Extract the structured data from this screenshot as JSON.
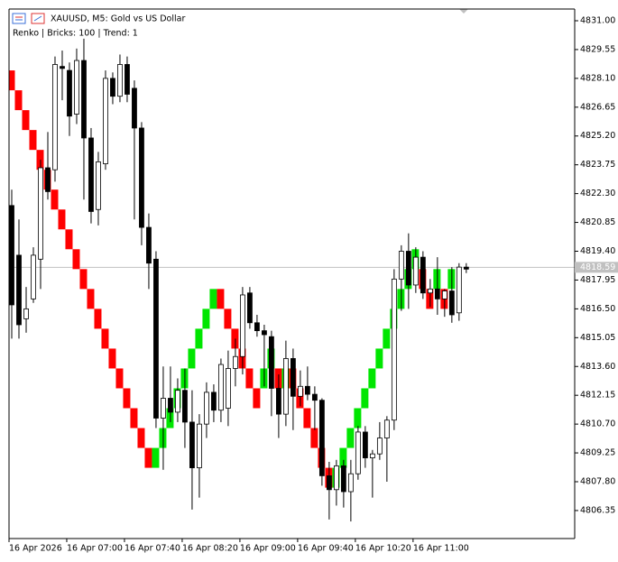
{
  "chart_data": {
    "type": "candlestick",
    "title": "XAUUSD, M5:  Gold vs US Dollar",
    "subtitle": "Renko | Bricks: 100 | Trend: 1",
    "ylim": [
      4804.94,
      4831.59
    ],
    "xlim": [
      0,
      78.4
    ],
    "yticks": [
      {
        "value": 4831.0,
        "label": "4831.00"
      },
      {
        "value": 4829.55,
        "label": "4829.55"
      },
      {
        "value": 4828.1,
        "label": "4828.10"
      },
      {
        "value": 4826.65,
        "label": "4826.65"
      },
      {
        "value": 4825.2,
        "label": "4825.20"
      },
      {
        "value": 4823.75,
        "label": "4823.75"
      },
      {
        "value": 4822.3,
        "label": "4822.30"
      },
      {
        "value": 4820.85,
        "label": "4820.85"
      },
      {
        "value": 4819.4,
        "label": "4819.40"
      },
      {
        "value": 4817.95,
        "label": "4817.95"
      },
      {
        "value": 4816.5,
        "label": "4816.50"
      },
      {
        "value": 4815.05,
        "label": "4815.05"
      },
      {
        "value": 4813.6,
        "label": "4813.60"
      },
      {
        "value": 4812.15,
        "label": "4812.15"
      },
      {
        "value": 4810.7,
        "label": "4810.70"
      },
      {
        "value": 4809.25,
        "label": "4809.25"
      },
      {
        "value": 4807.8,
        "label": "4807.80"
      },
      {
        "value": 4806.35,
        "label": "4806.35"
      }
    ],
    "xticks": [
      {
        "value": 0,
        "label": "16 Apr 2026"
      },
      {
        "value": 8,
        "label": "16 Apr 07:00"
      },
      {
        "value": 16,
        "label": "16 Apr 07:40"
      },
      {
        "value": 24,
        "label": "16 Apr 08:20"
      },
      {
        "value": 32,
        "label": "16 Apr 09:00"
      },
      {
        "value": 40,
        "label": "16 Apr 09:40"
      },
      {
        "value": 48,
        "label": "16 Apr 10:20"
      },
      {
        "value": 56,
        "label": "16 Apr 11:00"
      }
    ],
    "current_price": {
      "value": 4818.59,
      "label": "4818.59"
    },
    "candles": {
      "bull_color": "#ffffff",
      "bear_color": "#000000",
      "open": [
        4821.7,
        4819.2,
        4816.0,
        4817.0,
        4819.0,
        4823.6,
        4823.5,
        4828.7,
        4828.5,
        4826.3,
        4829.0,
        4825.1,
        4821.5,
        4823.8,
        4828.1,
        4827.2,
        4828.8,
        4827.6,
        4825.6,
        4820.6,
        4819.0,
        4811.0,
        4812.0,
        4811.3,
        4812.4,
        4810.8,
        4808.5,
        4810.7,
        4812.3,
        4811.4,
        4811.5,
        4813.5,
        4814.1,
        4817.3,
        4815.8,
        4815.4,
        4815.1,
        4812.5,
        4811.2,
        4814.0,
        4812.1,
        4812.6,
        4812.2,
        4811.9,
        4808.1,
        4807.4,
        4808.6,
        4807.3,
        4808.2,
        4810.3,
        4809.0,
        4809.2,
        4810.0,
        4810.9,
        4818.0,
        4819.4,
        4817.7,
        4819.1,
        4817.3,
        4817.5,
        4817.0,
        4817.4,
        4816.3,
        4818.6
      ],
      "high": [
        4822.5,
        4821.0,
        4817.6,
        4819.6,
        4824.0,
        4825.4,
        4829.2,
        4829.5,
        4828.9,
        4829.6,
        4830.1,
        4825.6,
        4824.4,
        4828.5,
        4828.4,
        4829.3,
        4829.2,
        4828.0,
        4825.9,
        4821.3,
        4819.4,
        4813.6,
        4813.6,
        4813.0,
        4813.5,
        4812.4,
        4811.2,
        4812.8,
        4812.7,
        4814.0,
        4814.4,
        4815.0,
        4817.6,
        4817.6,
        4816.2,
        4815.7,
        4815.4,
        4813.2,
        4814.9,
        4814.5,
        4813.4,
        4813.6,
        4812.6,
        4812.0,
        4808.8,
        4808.9,
        4808.9,
        4808.9,
        4810.6,
        4810.6,
        4809.4,
        4810.8,
        4811.1,
        4818.5,
        4819.7,
        4820.3,
        4819.6,
        4819.4,
        4818.0,
        4819.1,
        4817.5,
        4818.6,
        4818.8,
        4818.8
      ],
      "low": [
        4815.0,
        4815.0,
        4815.3,
        4816.8,
        4817.5,
        4822.0,
        4822.9,
        4827.0,
        4825.2,
        4825.8,
        4822.0,
        4820.8,
        4820.7,
        4823.5,
        4826.8,
        4826.9,
        4826.9,
        4821.0,
        4819.7,
        4817.5,
        4810.5,
        4808.4,
        4810.8,
        4810.8,
        4809.5,
        4806.4,
        4807.0,
        4810.0,
        4810.8,
        4810.8,
        4810.6,
        4812.6,
        4813.2,
        4815.5,
        4815.1,
        4812.6,
        4811.1,
        4810.0,
        4810.6,
        4810.4,
        4811.6,
        4811.9,
        4810.4,
        4807.6,
        4805.9,
        4806.6,
        4806.5,
        4805.8,
        4807.9,
        4808.5,
        4807.0,
        4808.9,
        4807.8,
        4810.4,
        4816.4,
        4816.5,
        4817.3,
        4817.0,
        4816.6,
        4816.2,
        4816.1,
        4815.8,
        4815.9,
        4818.3
      ],
      "close": [
        4816.7,
        4815.7,
        4816.5,
        4819.2,
        4823.6,
        4822.4,
        4828.8,
        4828.6,
        4826.2,
        4829.0,
        4825.1,
        4821.4,
        4823.9,
        4828.1,
        4827.2,
        4828.8,
        4827.3,
        4825.6,
        4820.6,
        4818.8,
        4811.0,
        4812.0,
        4811.3,
        4812.4,
        4810.8,
        4808.5,
        4810.7,
        4812.3,
        4811.4,
        4813.7,
        4813.5,
        4814.1,
        4817.2,
        4815.8,
        4815.4,
        4815.2,
        4812.5,
        4811.2,
        4814.0,
        4812.1,
        4812.6,
        4812.2,
        4811.9,
        4808.1,
        4807.4,
        4808.6,
        4807.3,
        4808.2,
        4810.3,
        4809.0,
        4809.2,
        4810.0,
        4810.9,
        4818.0,
        4819.4,
        4817.7,
        4819.1,
        4817.3,
        4817.5,
        4817.0,
        4817.4,
        4816.2,
        4818.6,
        4818.5
      ]
    },
    "renko": {
      "up_color": "#00e600",
      "down_color": "#ff0000",
      "open": [
        4828.5,
        4827.5,
        4826.5,
        4825.5,
        4824.5,
        4823.5,
        4822.5,
        4821.5,
        4820.5,
        4819.5,
        4818.5,
        4817.5,
        4816.5,
        4815.5,
        4814.5,
        4813.5,
        4812.5,
        4811.5,
        4810.5,
        4809.5,
        4808.5,
        4809.5,
        4810.5,
        4811.5,
        4812.5,
        4813.5,
        4814.5,
        4815.5,
        4816.5,
        4817.5,
        4816.5,
        4815.5,
        4814.5,
        4813.5,
        4812.5,
        4812.5,
        4813.5,
        4813.5,
        4812.5,
        4813.5,
        4812.5,
        4811.5,
        4810.5,
        4809.5,
        4808.5,
        4807.5,
        4808.5,
        4809.5,
        4810.5,
        4811.5,
        4812.5,
        4813.5,
        4814.5,
        4815.5,
        4816.5,
        4817.5,
        4818.5,
        4818.5,
        4817.5,
        4817.5,
        4817.5,
        4817.5
      ],
      "close": [
        4827.5,
        4826.5,
        4825.5,
        4824.5,
        4823.5,
        4822.5,
        4821.5,
        4820.5,
        4819.5,
        4818.5,
        4817.5,
        4816.5,
        4815.5,
        4814.5,
        4813.5,
        4812.5,
        4811.5,
        4810.5,
        4809.5,
        4808.5,
        4809.5,
        4810.5,
        4811.5,
        4812.5,
        4813.5,
        4814.5,
        4815.5,
        4816.5,
        4817.5,
        4816.5,
        4815.5,
        4814.5,
        4813.5,
        4812.5,
        4811.5,
        4813.5,
        4814.5,
        4812.5,
        4813.5,
        4812.5,
        4811.5,
        4810.5,
        4809.5,
        4808.5,
        4807.5,
        4808.5,
        4809.5,
        4810.5,
        4811.5,
        4812.5,
        4813.5,
        4814.5,
        4815.5,
        4816.5,
        4817.5,
        4818.5,
        4819.5,
        4817.5,
        4816.5,
        4818.5,
        4816.5,
        4818.5
      ]
    }
  }
}
